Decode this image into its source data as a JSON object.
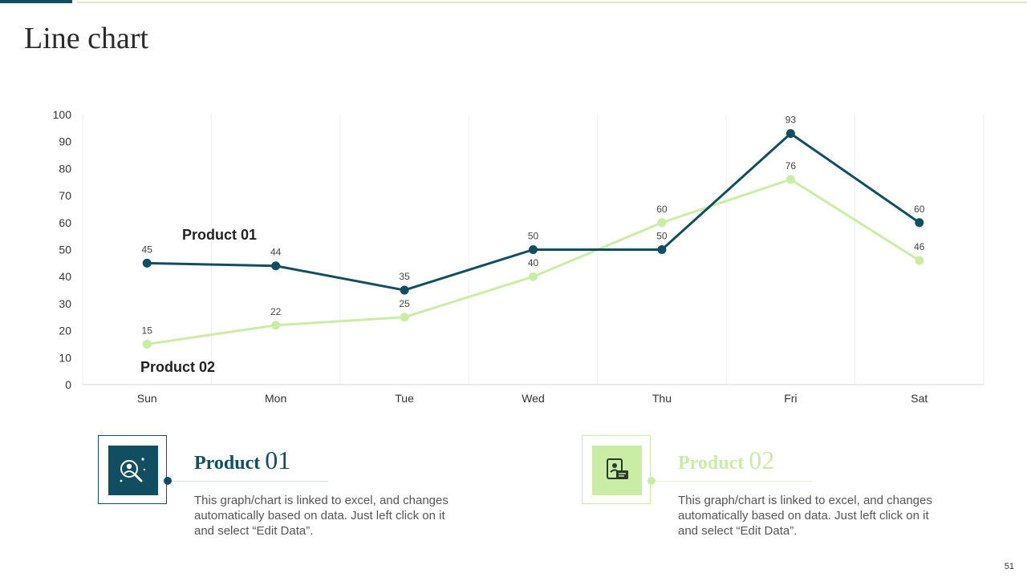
{
  "slide": {
    "title": "Line chart",
    "page_number": "51"
  },
  "colors": {
    "product1": "#114e62",
    "product2": "#c9eda4",
    "grid": "#eeeeee",
    "accent_line": "#d8ecc3"
  },
  "chart_data": {
    "type": "line",
    "categories": [
      "Sun",
      "Mon",
      "Tue",
      "Wed",
      "Thu",
      "Fri",
      "Sat"
    ],
    "series": [
      {
        "name": "Product 01",
        "values": [
          45,
          44,
          35,
          50,
          50,
          93,
          60
        ],
        "color": "#114e62"
      },
      {
        "name": "Product 02",
        "values": [
          15,
          22,
          25,
          40,
          60,
          76,
          46
        ],
        "color": "#c9eda4"
      }
    ],
    "ylim": [
      0,
      100
    ],
    "yticks": [
      0,
      10,
      20,
      30,
      40,
      50,
      60,
      70,
      80,
      90,
      100
    ],
    "xlabel": "",
    "ylabel": "",
    "grid": "vertical",
    "data_labels": true
  },
  "products": [
    {
      "title_word": "Product",
      "title_num": "01",
      "icon": "person-search-icon",
      "description": "This graph/chart is linked to excel, and changes automatically based on data. Just left click on it and select “Edit Data”."
    },
    {
      "title_word": "Product",
      "title_num": "02",
      "icon": "id-card-document-icon",
      "description": "This graph/chart is linked to excel, and changes automatically based on data. Just left click on it and select “Edit Data”."
    }
  ]
}
